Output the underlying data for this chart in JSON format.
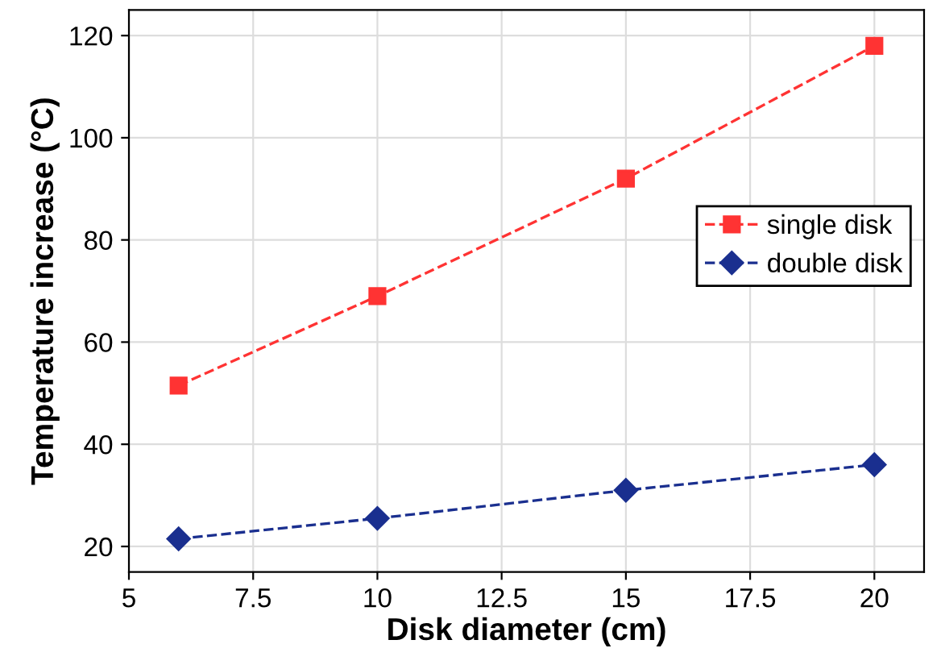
{
  "chart_data": {
    "type": "line",
    "xlabel": "Disk diameter (cm)",
    "ylabel": "Temperature increase (°C)",
    "x": [
      6,
      10,
      15,
      20
    ],
    "series": [
      {
        "name": "single disk",
        "color": "#ff3333",
        "values": [
          51.5,
          69,
          92,
          118
        ],
        "marker": "square"
      },
      {
        "name": "double disk",
        "color": "#1a2f8f",
        "values": [
          21.5,
          25.5,
          31,
          36
        ],
        "marker": "diamond"
      }
    ],
    "xlim": [
      5,
      21
    ],
    "ylim": [
      15,
      125
    ],
    "xticks": [
      5,
      {
        "value": 7.5,
        "label": "7.5"
      },
      10,
      {
        "value": 12.5,
        "label": "12.5"
      },
      15,
      {
        "value": 17.5,
        "label": "17.5"
      },
      20
    ],
    "yticks": [
      20,
      40,
      60,
      80,
      100,
      120
    ],
    "grid": true,
    "legend": "right",
    "line_style": "dashed"
  }
}
